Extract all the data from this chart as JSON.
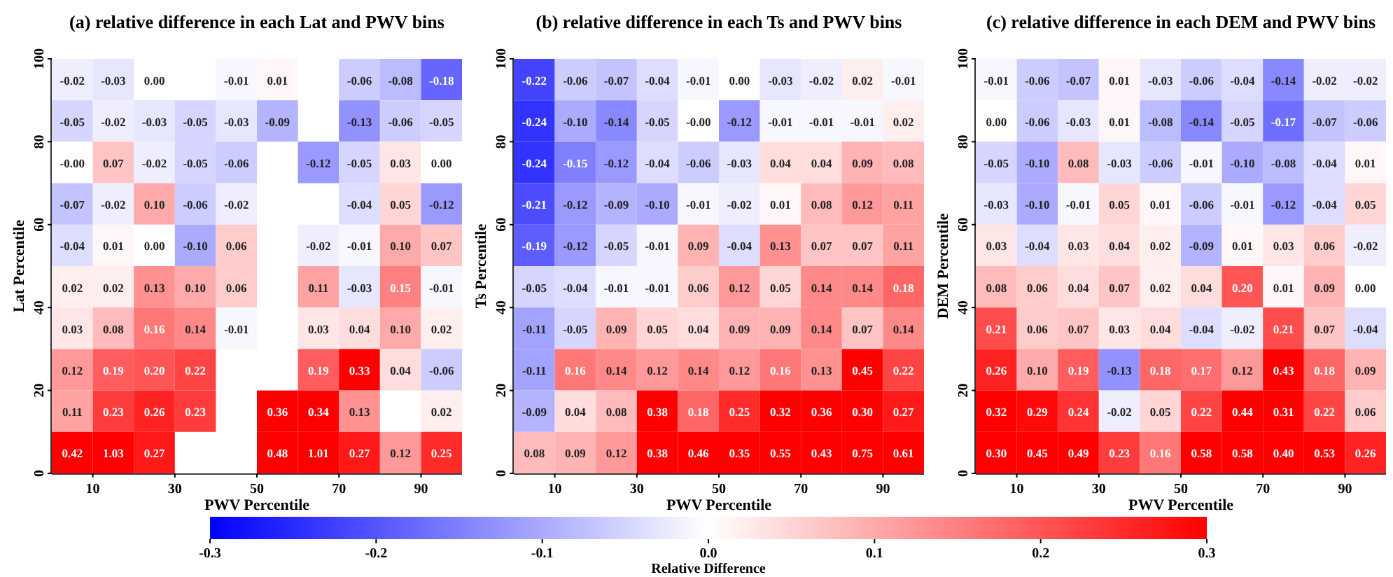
{
  "chart_data": [
    {
      "type": "heatmap",
      "title": "(a) relative difference in each Lat and PWV bins",
      "xlabel": "PWV Percentile",
      "ylabel": "Lat Percentile",
      "xlim": [
        0,
        100
      ],
      "xticks": [
        10,
        30,
        50,
        70,
        90
      ],
      "ylim": [
        0,
        100
      ],
      "yticks": [
        0,
        20,
        40,
        60,
        80,
        100
      ],
      "cells": [
        [
          -0.02,
          -0.03,
          0.0,
          null,
          -0.01,
          0.01,
          null,
          -0.06,
          -0.08,
          -0.18
        ],
        [
          -0.05,
          -0.02,
          -0.03,
          -0.05,
          -0.03,
          -0.09,
          null,
          -0.13,
          -0.06,
          -0.05
        ],
        [
          -0.0,
          0.07,
          -0.02,
          -0.05,
          -0.06,
          null,
          -0.12,
          -0.05,
          0.03,
          0.0
        ],
        [
          -0.07,
          -0.02,
          0.1,
          -0.06,
          -0.02,
          null,
          null,
          -0.04,
          0.05,
          -0.12
        ],
        [
          -0.04,
          0.01,
          0.0,
          -0.1,
          0.06,
          null,
          -0.02,
          -0.01,
          0.1,
          0.07
        ],
        [
          0.02,
          0.02,
          0.13,
          0.1,
          0.06,
          null,
          0.11,
          -0.03,
          0.15,
          -0.01
        ],
        [
          0.03,
          0.08,
          0.16,
          0.14,
          -0.01,
          null,
          0.03,
          0.04,
          0.1,
          0.02
        ],
        [
          0.12,
          0.19,
          0.2,
          0.22,
          null,
          null,
          0.19,
          0.33,
          0.04,
          -0.06
        ],
        [
          0.11,
          0.23,
          0.26,
          0.23,
          null,
          0.36,
          0.34,
          0.13,
          null,
          0.02
        ],
        [
          0.42,
          1.03,
          0.27,
          null,
          null,
          0.48,
          1.01,
          0.27,
          0.12,
          0.25
        ]
      ],
      "cell_labels": [
        [
          "-0.02",
          "-0.03",
          "0.00",
          null,
          "-0.01",
          "0.01",
          null,
          "-0.06",
          "-0.08",
          "-0.18"
        ],
        [
          "-0.05",
          "-0.02",
          "-0.03",
          "-0.05",
          "-0.03",
          "-0.09",
          null,
          "-0.13",
          "-0.06",
          "-0.05"
        ],
        [
          "-0.00",
          "0.07",
          "-0.02",
          "-0.05",
          "-0.06",
          null,
          "-0.12",
          "-0.05",
          "0.03",
          "0.00"
        ],
        [
          "-0.07",
          "-0.02",
          "0.10",
          "-0.06",
          "-0.02",
          null,
          null,
          "-0.04",
          "0.05",
          "-0.12"
        ],
        [
          "-0.04",
          "0.01",
          "0.00",
          "-0.10",
          "0.06",
          null,
          "-0.02",
          "-0.01",
          "0.10",
          "0.07"
        ],
        [
          "0.02",
          "0.02",
          "0.13",
          "0.10",
          "0.06",
          null,
          "0.11",
          "-0.03",
          "0.15",
          "-0.01"
        ],
        [
          "0.03",
          "0.08",
          "0.16",
          "0.14",
          "-0.01",
          null,
          "0.03",
          "0.04",
          "0.10",
          "0.02"
        ],
        [
          "0.12",
          "0.19",
          "0.20",
          "0.22",
          null,
          null,
          "0.19",
          "0.33",
          "0.04",
          "-0.06"
        ],
        [
          "0.11",
          "0.23",
          "0.26",
          "0.23",
          null,
          "0.36",
          "0.34",
          "0.13",
          null,
          "0.02"
        ],
        [
          "0.42",
          "1.03",
          "0.27",
          null,
          null,
          "0.48",
          "1.01",
          "0.27",
          "0.12",
          "0.25"
        ]
      ]
    },
    {
      "type": "heatmap",
      "title": "(b) relative difference in each Ts and PWV bins",
      "xlabel": "PWV Percentile",
      "ylabel": "Ts Percentile",
      "clabel": "Relative Difference",
      "xlim": [
        0,
        100
      ],
      "xticks": [
        10,
        30,
        50,
        70,
        90
      ],
      "ylim": [
        0,
        100
      ],
      "yticks": [
        0,
        20,
        40,
        60,
        80,
        100
      ],
      "clim": [
        -0.3,
        0.3
      ],
      "cticks": [
        -0.3,
        -0.2,
        -0.1,
        {
          "value": 0,
          "label": "0.0"
        },
        0.1,
        0.2,
        0.3
      ],
      "cells": [
        [
          -0.22,
          -0.06,
          -0.07,
          -0.04,
          -0.01,
          0.0,
          -0.03,
          -0.02,
          0.02,
          -0.01
        ],
        [
          -0.24,
          -0.1,
          -0.14,
          -0.05,
          -0.0,
          -0.12,
          -0.01,
          -0.01,
          -0.01,
          0.02
        ],
        [
          -0.24,
          -0.15,
          -0.12,
          -0.04,
          -0.06,
          -0.03,
          0.04,
          0.04,
          0.09,
          0.08
        ],
        [
          -0.21,
          -0.12,
          -0.09,
          -0.1,
          -0.01,
          -0.02,
          0.01,
          0.08,
          0.12,
          0.11
        ],
        [
          -0.19,
          -0.12,
          -0.05,
          -0.01,
          0.09,
          -0.04,
          0.13,
          0.07,
          0.07,
          0.11
        ],
        [
          -0.05,
          -0.04,
          -0.01,
          -0.01,
          0.06,
          0.12,
          0.05,
          0.14,
          0.14,
          0.18
        ],
        [
          -0.11,
          -0.05,
          0.09,
          0.05,
          0.04,
          0.09,
          0.09,
          0.14,
          0.07,
          0.14
        ],
        [
          -0.11,
          0.16,
          0.14,
          0.12,
          0.14,
          0.12,
          0.16,
          0.13,
          0.45,
          0.22
        ],
        [
          -0.09,
          0.04,
          0.08,
          0.38,
          0.18,
          0.25,
          0.32,
          0.36,
          0.3,
          0.27
        ],
        [
          0.08,
          0.09,
          0.12,
          0.38,
          0.46,
          0.35,
          0.55,
          0.43,
          0.75,
          0.61
        ]
      ],
      "cell_labels": [
        [
          "-0.22",
          "-0.06",
          "-0.07",
          "-0.04",
          "-0.01",
          "0.00",
          "-0.03",
          "-0.02",
          "0.02",
          "-0.01"
        ],
        [
          "-0.24",
          "-0.10",
          "-0.14",
          "-0.05",
          "-0.00",
          "-0.12",
          "-0.01",
          "-0.01",
          "-0.01",
          "0.02"
        ],
        [
          "-0.24",
          "-0.15",
          "-0.12",
          "-0.04",
          "-0.06",
          "-0.03",
          "0.04",
          "0.04",
          "0.09",
          "0.08"
        ],
        [
          "-0.21",
          "-0.12",
          "-0.09",
          "-0.10",
          "-0.01",
          "-0.02",
          "0.01",
          "0.08",
          "0.12",
          "0.11"
        ],
        [
          "-0.19",
          "-0.12",
          "-0.05",
          "-0.01",
          "0.09",
          "-0.04",
          "0.13",
          "0.07",
          "0.07",
          "0.11"
        ],
        [
          "-0.05",
          "-0.04",
          "-0.01",
          "-0.01",
          "0.06",
          "0.12",
          "0.05",
          "0.14",
          "0.14",
          "0.18"
        ],
        [
          "-0.11",
          "-0.05",
          "0.09",
          "0.05",
          "0.04",
          "0.09",
          "0.09",
          "0.14",
          "0.07",
          "0.14"
        ],
        [
          "-0.11",
          "0.16",
          "0.14",
          "0.12",
          "0.14",
          "0.12",
          "0.16",
          "0.13",
          "0.45",
          "0.22"
        ],
        [
          "-0.09",
          "0.04",
          "0.08",
          "0.38",
          "0.18",
          "0.25",
          "0.32",
          "0.36",
          "0.30",
          "0.27"
        ],
        [
          "0.08",
          "0.09",
          "0.12",
          "0.38",
          "0.46",
          "0.35",
          "0.55",
          "0.43",
          "0.75",
          "0.61"
        ]
      ]
    },
    {
      "type": "heatmap",
      "title": "(c) relative difference in each DEM and PWV bins",
      "xlabel": "PWV Percentile",
      "ylabel": "DEM Percentile",
      "xlim": [
        0,
        100
      ],
      "xticks": [
        10,
        30,
        50,
        70,
        90
      ],
      "ylim": [
        0,
        100
      ],
      "yticks": [
        0,
        20,
        40,
        60,
        80,
        100
      ],
      "cells": [
        [
          -0.01,
          -0.06,
          -0.07,
          0.01,
          -0.03,
          -0.06,
          -0.04,
          -0.14,
          -0.02,
          -0.02
        ],
        [
          0.0,
          -0.06,
          -0.03,
          0.01,
          -0.08,
          -0.14,
          -0.05,
          -0.17,
          -0.07,
          -0.06
        ],
        [
          -0.05,
          -0.1,
          0.08,
          -0.03,
          -0.06,
          -0.01,
          -0.1,
          -0.08,
          -0.04,
          0.01
        ],
        [
          -0.03,
          -0.1,
          -0.01,
          0.05,
          0.01,
          -0.06,
          -0.01,
          -0.12,
          -0.04,
          0.05
        ],
        [
          0.03,
          -0.04,
          0.03,
          0.04,
          0.02,
          -0.09,
          0.01,
          0.03,
          0.06,
          -0.02
        ],
        [
          0.08,
          0.06,
          0.04,
          0.07,
          0.02,
          0.04,
          0.2,
          0.01,
          0.09,
          0.0
        ],
        [
          0.21,
          0.06,
          0.07,
          0.03,
          0.04,
          -0.04,
          -0.02,
          0.21,
          0.07,
          -0.04
        ],
        [
          0.26,
          0.1,
          0.19,
          -0.13,
          0.18,
          0.17,
          0.12,
          0.43,
          0.18,
          0.09
        ],
        [
          0.32,
          0.29,
          0.24,
          -0.02,
          0.05,
          0.22,
          0.44,
          0.31,
          0.22,
          0.06
        ],
        [
          0.3,
          0.45,
          0.49,
          0.23,
          0.16,
          0.58,
          0.58,
          0.4,
          0.53,
          0.26
        ]
      ],
      "cell_labels": [
        [
          "-0.01",
          "-0.06",
          "-0.07",
          "0.01",
          "-0.03",
          "-0.06",
          "-0.04",
          "-0.14",
          "-0.02",
          "-0.02"
        ],
        [
          "0.00",
          "-0.06",
          "-0.03",
          "0.01",
          "-0.08",
          "-0.14",
          "-0.05",
          "-0.17",
          "-0.07",
          "-0.06"
        ],
        [
          "-0.05",
          "-0.10",
          "0.08",
          "-0.03",
          "-0.06",
          "-0.01",
          "-0.10",
          "-0.08",
          "-0.04",
          "0.01"
        ],
        [
          "-0.03",
          "-0.10",
          "-0.01",
          "0.05",
          "0.01",
          "-0.06",
          "-0.01",
          "-0.12",
          "-0.04",
          "0.05"
        ],
        [
          "0.03",
          "-0.04",
          "0.03",
          "0.04",
          "0.02",
          "-0.09",
          "0.01",
          "0.03",
          "0.06",
          "-0.02"
        ],
        [
          "0.08",
          "0.06",
          "0.04",
          "0.07",
          "0.02",
          "0.04",
          "0.20",
          "0.01",
          "0.09",
          "0.00"
        ],
        [
          "0.21",
          "0.06",
          "0.07",
          "0.03",
          "0.04",
          "-0.04",
          "-0.02",
          "0.21",
          "0.07",
          "-0.04"
        ],
        [
          "0.26",
          "0.10",
          "0.19",
          "-0.13",
          "0.18",
          "0.17",
          "0.12",
          "0.43",
          "0.18",
          "0.09"
        ],
        [
          "0.32",
          "0.29",
          "0.24",
          "-0.02",
          "0.05",
          "0.22",
          "0.44",
          "0.31",
          "0.22",
          "0.06"
        ],
        [
          "0.30",
          "0.45",
          "0.49",
          "0.23",
          "0.16",
          "0.58",
          "0.58",
          "0.40",
          "0.53",
          "0.26"
        ]
      ]
    }
  ]
}
